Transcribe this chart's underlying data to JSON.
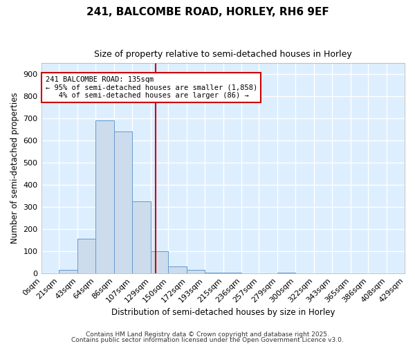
{
  "title": "241, BALCOMBE ROAD, HORLEY, RH6 9EF",
  "subtitle": "Size of property relative to semi-detached houses in Horley",
  "xlabel": "Distribution of semi-detached houses by size in Horley",
  "ylabel": "Number of semi-detached properties",
  "bin_labels": [
    "0sqm",
    "21sqm",
    "43sqm",
    "64sqm",
    "86sqm",
    "107sqm",
    "129sqm",
    "150sqm",
    "172sqm",
    "193sqm",
    "215sqm",
    "236sqm",
    "257sqm",
    "279sqm",
    "300sqm",
    "322sqm",
    "343sqm",
    "365sqm",
    "386sqm",
    "408sqm",
    "429sqm"
  ],
  "bin_edges": [
    0,
    21,
    43,
    64,
    86,
    107,
    129,
    150,
    172,
    193,
    215,
    236,
    257,
    279,
    300,
    322,
    343,
    365,
    386,
    408,
    429
  ],
  "bar_heights": [
    0,
    15,
    155,
    690,
    640,
    325,
    100,
    30,
    15,
    5,
    5,
    0,
    0,
    5,
    0,
    0,
    0,
    0,
    0,
    0
  ],
  "bar_color": "#ccdcec",
  "bar_edgecolor": "#6699cc",
  "vline_x": 135,
  "vline_color": "#cc0000",
  "annotation_text": "241 BALCOMBE ROAD: 135sqm\n← 95% of semi-detached houses are smaller (1,858)\n   4% of semi-detached houses are larger (86) →",
  "annotation_box_edgecolor": "#cc0000",
  "annotation_bg_color": "#ffffff",
  "ylim": [
    0,
    950
  ],
  "yticks": [
    0,
    100,
    200,
    300,
    400,
    500,
    600,
    700,
    800,
    900
  ],
  "fig_bg_color": "#ffffff",
  "plot_bg_color": "#ddeeff",
  "grid_color": "#ffffff",
  "footer1": "Contains HM Land Registry data © Crown copyright and database right 2025.",
  "footer2": "Contains public sector information licensed under the Open Government Licence v3.0."
}
